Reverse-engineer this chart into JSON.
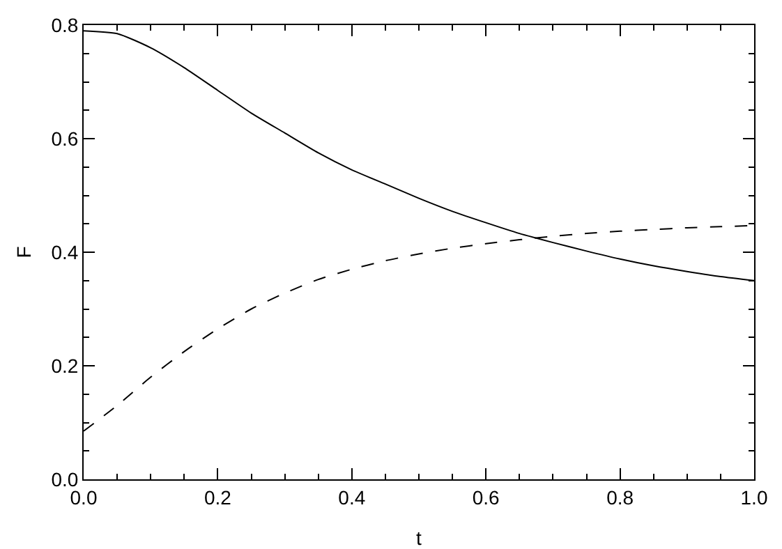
{
  "chart_data": {
    "type": "line",
    "xlabel": "t",
    "ylabel": "F",
    "x": [
      0,
      0.05,
      0.1,
      0.15,
      0.2,
      0.25,
      0.3,
      0.35,
      0.4,
      0.45,
      0.5,
      0.55,
      0.6,
      0.65,
      0.7,
      0.75,
      0.8,
      0.85,
      0.9,
      0.95,
      1
    ],
    "series": [
      {
        "color": "#000000",
        "line_style": "solid",
        "values": [
          0.79,
          0.785,
          0.76,
          0.725,
          0.685,
          0.645,
          0.61,
          0.575,
          0.545,
          0.52,
          0.495,
          0.472,
          0.452,
          0.433,
          0.417,
          0.402,
          0.388,
          0.376,
          0.366,
          0.357,
          0.35
        ]
      },
      {
        "color": "#000000",
        "line_style": "dashed",
        "values": [
          0.085,
          0.13,
          0.18,
          0.225,
          0.265,
          0.3,
          0.328,
          0.352,
          0.37,
          0.385,
          0.397,
          0.407,
          0.415,
          0.422,
          0.428,
          0.433,
          0.437,
          0.44,
          0.443,
          0.445,
          0.447
        ]
      }
    ],
    "xlim": [
      0,
      1
    ],
    "xticks": [
      {
        "value": 0,
        "label": "0.0"
      },
      {
        "value": 0.2,
        "label": "0.2"
      },
      {
        "value": 0.4,
        "label": "0.4"
      },
      {
        "value": 0.6,
        "label": "0.6"
      },
      {
        "value": 0.8,
        "label": "0.8"
      },
      {
        "value": 1,
        "label": "1.0"
      }
    ],
    "ylim": [
      0,
      0.8
    ],
    "yticks": [
      {
        "value": 0,
        "label": "0.0"
      },
      {
        "value": 0.2,
        "label": "0.2"
      },
      {
        "value": 0.4,
        "label": "0.4"
      },
      {
        "value": 0.6,
        "label": "0.6"
      },
      {
        "value": 0.8,
        "label": "0.8"
      }
    ],
    "grid": false,
    "marker": "none"
  }
}
